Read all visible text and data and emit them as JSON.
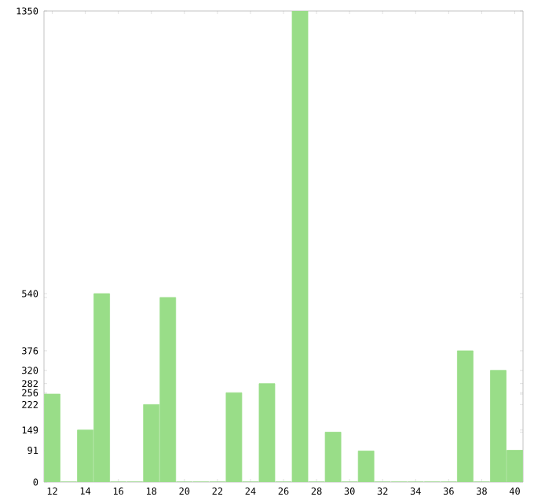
{
  "chart_data": {
    "type": "bar",
    "categories": [
      "12",
      null,
      "14",
      null,
      "16",
      null,
      "18",
      null,
      "20",
      null,
      "22",
      null,
      "24",
      null,
      "26",
      null,
      "28",
      null,
      "30",
      null,
      "32",
      null,
      "34",
      null,
      "36",
      null,
      "38",
      null,
      "40"
    ],
    "values": [
      252,
      0,
      149,
      540,
      0,
      0,
      222,
      529,
      0,
      0,
      0,
      256,
      0,
      282,
      0,
      1350,
      0,
      143,
      0,
      89,
      0,
      0,
      0,
      0,
      0,
      376,
      0,
      320,
      91
    ],
    "color": "#99dd88",
    "ylim": [
      0,
      1350
    ],
    "yticks": [
      0,
      {
        "value": 89,
        "label": null
      },
      91,
      {
        "value": 143,
        "label": null
      },
      149,
      222,
      {
        "value": 252,
        "label": null
      },
      256,
      282,
      320,
      376,
      {
        "value": 529,
        "label": null
      },
      540,
      1350
    ],
    "grid": false
  }
}
